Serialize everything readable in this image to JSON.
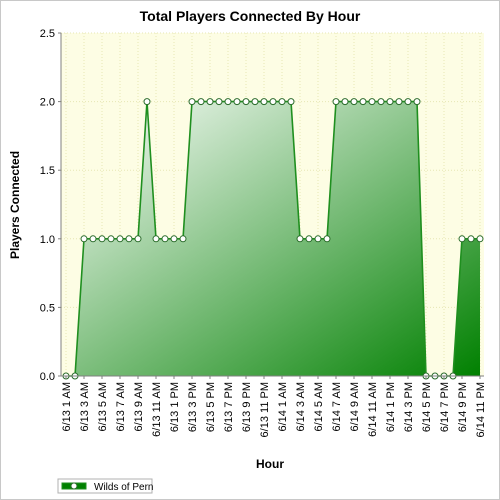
{
  "chart_data": {
    "type": "area",
    "title": "Total Players Connected By Hour",
    "xlabel": "Hour",
    "ylabel": "Players Connected",
    "ylim": [
      0,
      2.5
    ],
    "yticks": [
      "0.0",
      "0.5",
      "1.0",
      "1.5",
      "2.0",
      "2.5"
    ],
    "grid": true,
    "legend_position": "bottom-left",
    "colors": {
      "plot_background": "#fdfde4",
      "grid": "#e6e6b4",
      "area_light": "#ffffff",
      "area_dark": "#008000",
      "line": "#1f8f1f",
      "marker_fill": "#ffffff",
      "marker_stroke": "#2a6b2a"
    },
    "x": [
      "6/13 1 AM",
      "6/13 2 AM",
      "6/13 3 AM",
      "6/13 4 AM",
      "6/13 5 AM",
      "6/13 6 AM",
      "6/13 7 AM",
      "6/13 8 AM",
      "6/13 9 AM",
      "6/13 10 AM",
      "6/13 11 AM",
      "6/13 12 PM",
      "6/13 1 PM",
      "6/13 2 PM",
      "6/13 3 PM",
      "6/13 4 PM",
      "6/13 5 PM",
      "6/13 6 PM",
      "6/13 7 PM",
      "6/13 8 PM",
      "6/13 9 PM",
      "6/13 10 PM",
      "6/13 11 PM",
      "6/14 12 AM",
      "6/14 1 AM",
      "6/14 2 AM",
      "6/14 3 AM",
      "6/14 4 AM",
      "6/14 5 AM",
      "6/14 6 AM",
      "6/14 7 AM",
      "6/14 8 AM",
      "6/14 9 AM",
      "6/14 10 AM",
      "6/14 11 AM",
      "6/14 12 PM",
      "6/14 1 PM",
      "6/14 2 PM",
      "6/14 3 PM",
      "6/14 4 PM",
      "6/14 5 PM",
      "6/14 6 PM",
      "6/14 7 PM",
      "6/14 8 PM",
      "6/14 9 PM",
      "6/14 10 PM",
      "6/14 11 PM"
    ],
    "xtick_labels": [
      "6/13 1 AM",
      "6/13 3 AM",
      "6/13 5 AM",
      "6/13 7 AM",
      "6/13 9 AM",
      "6/13 11 AM",
      "6/13 1 PM",
      "6/13 3 PM",
      "6/13 5 PM",
      "6/13 7 PM",
      "6/13 9 PM",
      "6/13 11 PM",
      "6/14 1 AM",
      "6/14 3 AM",
      "6/14 5 AM",
      "6/14 7 AM",
      "6/14 9 AM",
      "6/14 11 AM",
      "6/14 1 PM",
      "6/14 3 PM",
      "6/14 5 PM",
      "6/14 7 PM",
      "6/14 9 PM",
      "6/14 11 PM"
    ],
    "series": [
      {
        "name": "Wilds of Pern",
        "values": [
          0,
          0,
          1,
          1,
          1,
          1,
          1,
          1,
          1,
          2,
          1,
          1,
          1,
          1,
          2,
          2,
          2,
          2,
          2,
          2,
          2,
          2,
          2,
          2,
          2,
          2,
          1,
          1,
          1,
          1,
          2,
          2,
          2,
          2,
          2,
          2,
          2,
          2,
          2,
          2,
          0,
          0,
          0,
          0,
          1,
          1,
          1
        ]
      }
    ]
  }
}
